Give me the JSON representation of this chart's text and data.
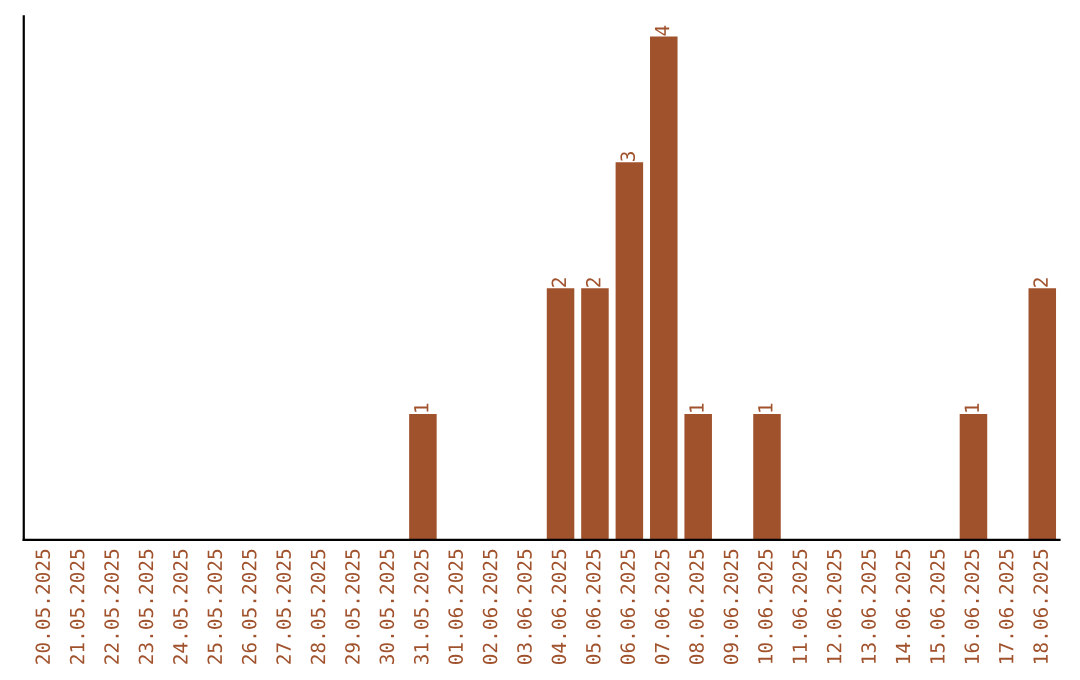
{
  "chart_data": {
    "type": "bar",
    "categories": [
      "20.05.2025",
      "21.05.2025",
      "22.05.2025",
      "23.05.2025",
      "24.05.2025",
      "25.05.2025",
      "26.05.2025",
      "27.05.2025",
      "28.05.2025",
      "29.05.2025",
      "30.05.2025",
      "31.05.2025",
      "01.06.2025",
      "02.06.2025",
      "03.06.2025",
      "04.06.2025",
      "05.06.2025",
      "06.06.2025",
      "07.06.2025",
      "08.06.2025",
      "09.06.2025",
      "10.06.2025",
      "11.06.2025",
      "12.06.2025",
      "13.06.2025",
      "14.06.2025",
      "15.06.2025",
      "16.06.2025",
      "17.06.2025",
      "18.06.2025"
    ],
    "values": [
      0,
      0,
      0,
      0,
      0,
      0,
      0,
      0,
      0,
      0,
      0,
      1,
      0,
      0,
      0,
      2,
      2,
      3,
      4,
      1,
      0,
      1,
      0,
      0,
      0,
      0,
      0,
      1,
      0,
      2
    ],
    "value_labels": [
      null,
      null,
      null,
      null,
      null,
      null,
      null,
      null,
      null,
      null,
      null,
      "1",
      null,
      null,
      null,
      "2",
      "2",
      "3",
      "4",
      "1",
      null,
      "1",
      null,
      null,
      null,
      null,
      null,
      "1",
      null,
      "2"
    ],
    "color": "#a0522d",
    "tick_labels": "x",
    "grid": false,
    "legend": false
  }
}
